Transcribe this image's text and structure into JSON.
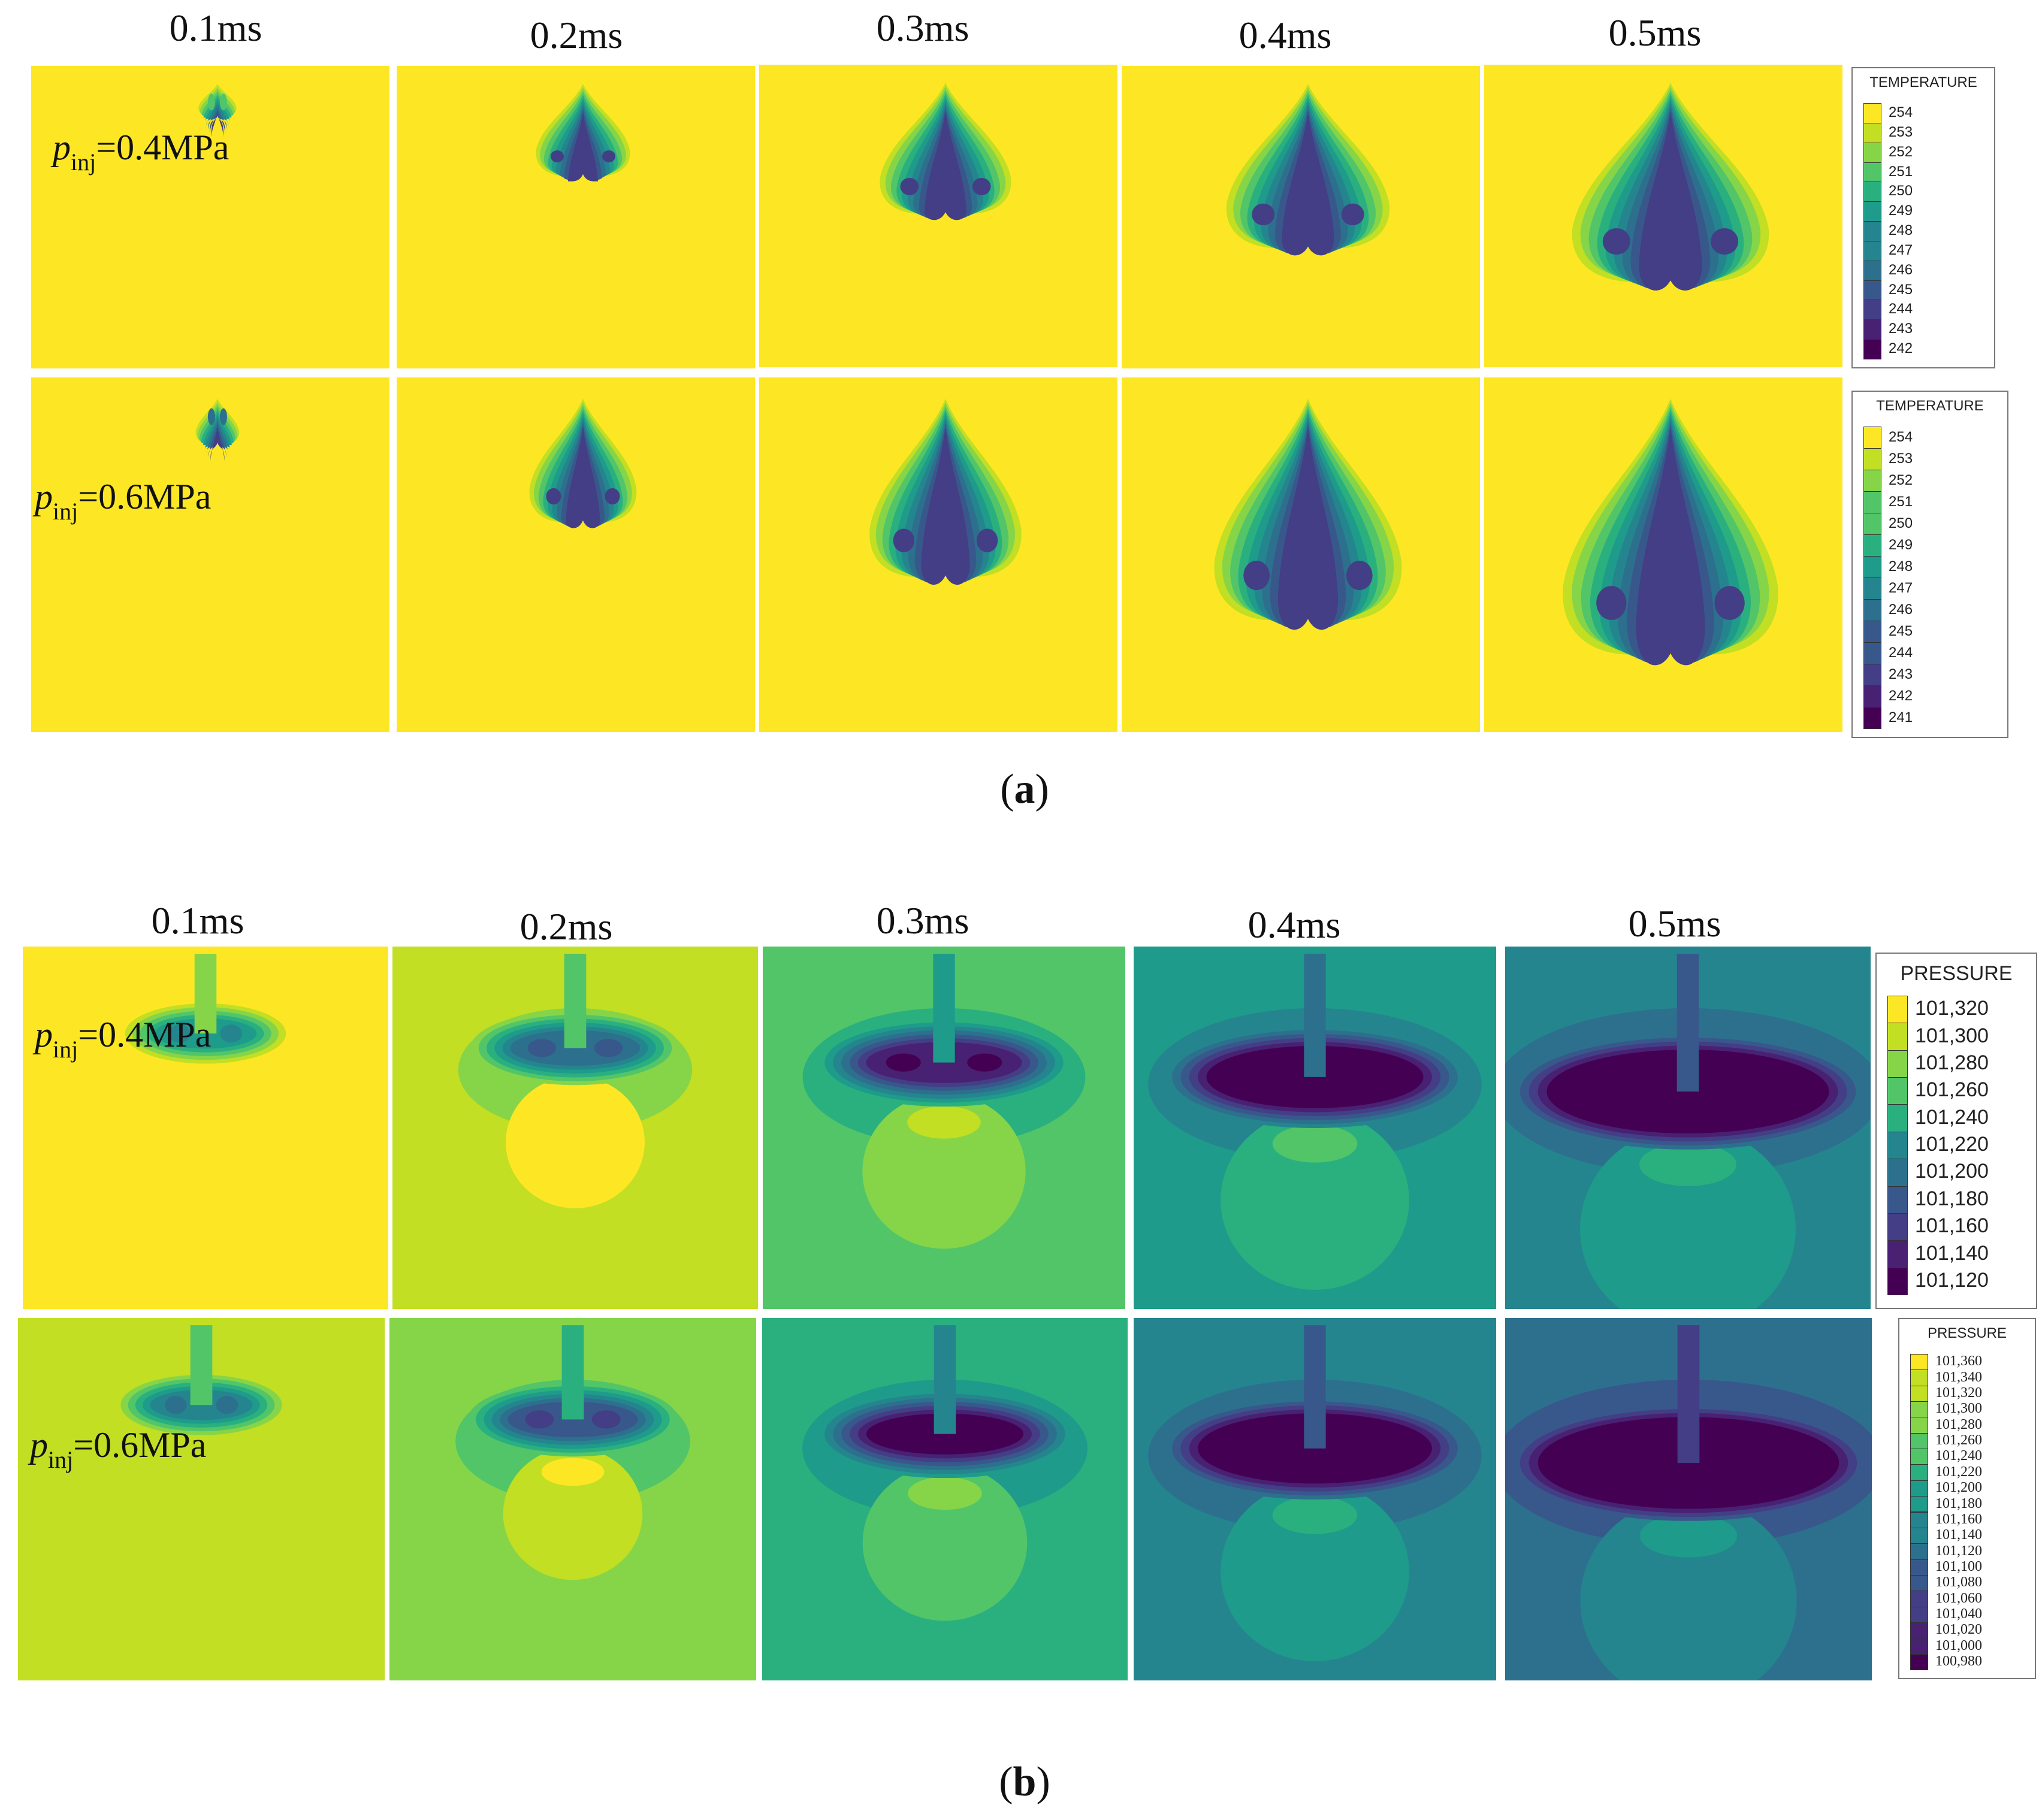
{
  "figure_a": {
    "caption_letter": "a",
    "times": [
      "0.1ms",
      "0.2ms",
      "0.3ms",
      "0.4ms",
      "0.5ms"
    ],
    "rows": [
      {
        "p_symbol": "p",
        "subscript": "inj",
        "value": "=0.4MPa"
      },
      {
        "p_symbol": "p",
        "subscript": "inj",
        "value": "=0.6MPa"
      }
    ],
    "legends": [
      {
        "title": "TEMPERATURE",
        "ticks": [
          "254",
          "253",
          "252",
          "251",
          "250",
          "249",
          "248",
          "247",
          "246",
          "245",
          "244",
          "243",
          "242"
        ]
      },
      {
        "title": "TEMPERATURE",
        "ticks": [
          "254",
          "253",
          "252",
          "251",
          "250",
          "249",
          "248",
          "247",
          "246",
          "245",
          "244",
          "243",
          "242",
          "241"
        ]
      }
    ]
  },
  "figure_b": {
    "caption_letter": "b",
    "times": [
      "0.1ms",
      "0.2ms",
      "0.3ms",
      "0.4ms",
      "0.5ms"
    ],
    "rows": [
      {
        "p_symbol": "p",
        "subscript": "inj",
        "value": "=0.4MPa"
      },
      {
        "p_symbol": "p",
        "subscript": "inj",
        "value": "=0.6MPa"
      }
    ],
    "legends": [
      {
        "title": "PRESSURE",
        "ticks": [
          "101,320",
          "101,300",
          "101,280",
          "101,260",
          "101,240",
          "101,220",
          "101,200",
          "101,180",
          "101,160",
          "101,140",
          "101,120"
        ]
      },
      {
        "title": "PRESSURE",
        "ticks": [
          "101,360",
          "101,340",
          "101,320",
          "101,300",
          "101,280",
          "101,260",
          "101,240",
          "101,220",
          "101,200",
          "101,180",
          "101,160",
          "101,140",
          "101,120",
          "101,100",
          "101,080",
          "101,060",
          "101,040",
          "101,020",
          "101,000",
          "100,980"
        ]
      }
    ]
  },
  "colormap": [
    "#fde725",
    "#c2df23",
    "#86d549",
    "#52c569",
    "#2ab07f",
    "#1e9b8a",
    "#25858e",
    "#2d708e",
    "#38588c",
    "#433e85",
    "#482173",
    "#440154"
  ]
}
